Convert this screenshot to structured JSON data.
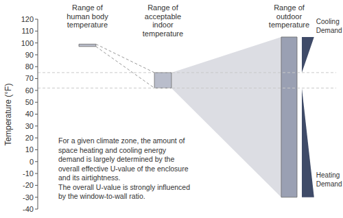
{
  "chart_data": {
    "type": "range_diagram",
    "y_label": "Temperature (°F)",
    "ylim": [
      -40,
      120
    ],
    "yticks": [
      -40,
      -30,
      -20,
      -10,
      0,
      10,
      20,
      30,
      40,
      50,
      60,
      70,
      80,
      90,
      100,
      110,
      120
    ],
    "grid": false,
    "ranges": [
      {
        "label": [
          "Range of",
          "human body",
          "temperature"
        ],
        "low": 97,
        "high": 99,
        "color": "#b9bdcb"
      },
      {
        "label": [
          "Range of",
          "acceptable",
          "indoor",
          "temperature"
        ],
        "low": 62,
        "high": 75,
        "color": "#b9bdcb"
      },
      {
        "label": [
          "Range of",
          "outdoor",
          "temperature"
        ],
        "low": -30,
        "high": 105,
        "color": "#9aa0b3"
      }
    ],
    "demand": [
      {
        "label": [
          "Cooling",
          "Demand"
        ],
        "from": 75,
        "to": 105,
        "color": "#3f4b68"
      },
      {
        "label": [
          "Heating",
          "Demand"
        ],
        "from": 62,
        "to": -30,
        "color": "#3f4b68"
      }
    ],
    "reference_lines": [
      75,
      62
    ],
    "annotation": [
      "For a given climate zone, the amount of",
      "space heating and cooling energy",
      "demand is largely determined by the",
      "overall effective U-value of the enclosure",
      "and its airtightness.",
      "The overall U-value is strongly influenced",
      "by the window-to-wall ratio."
    ]
  }
}
